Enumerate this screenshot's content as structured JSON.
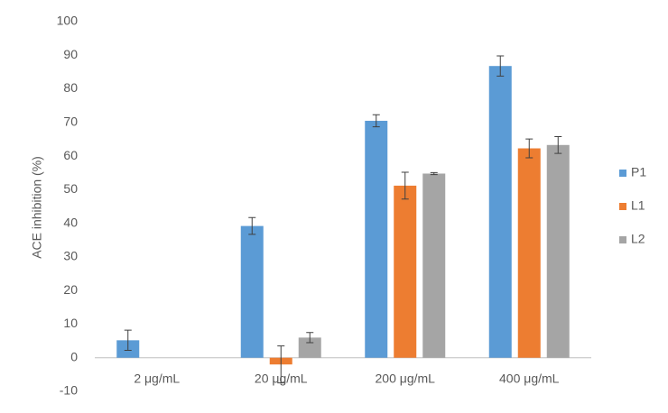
{
  "chart_data": {
    "type": "bar",
    "y_label": "ACE inhibition (%)",
    "categories": [
      "2 μg/mL",
      "20 μg/mL",
      "200 μg/mL",
      "400 μg/mL"
    ],
    "series": [
      {
        "name": "P1",
        "color": "#5b9bd5",
        "values": [
          5.2,
          39.2,
          70.5,
          86.8
        ],
        "errors": [
          3,
          2.5,
          1.8,
          3
        ]
      },
      {
        "name": "L1",
        "color": "#ed7d31",
        "values": [
          null,
          -2,
          51.2,
          62.3
        ],
        "errors": [
          null,
          5.5,
          4,
          2.8
        ]
      },
      {
        "name": "L2",
        "color": "#a5a5a5",
        "values": [
          null,
          6,
          54.8,
          63.3
        ],
        "errors": [
          null,
          1.5,
          0.3,
          2.5
        ]
      }
    ],
    "ylim": [
      -10,
      100
    ],
    "yticks": [
      -10,
      0,
      10,
      20,
      30,
      40,
      50,
      60,
      70,
      80,
      90,
      100
    ],
    "grid": false,
    "legend": "right"
  }
}
